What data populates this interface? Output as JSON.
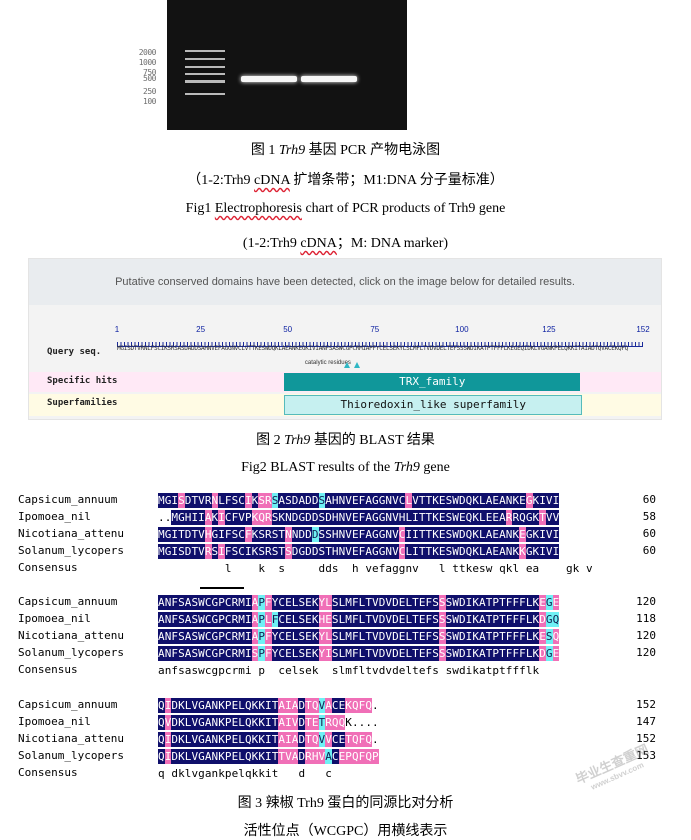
{
  "fig1": {
    "ladder_labels": [
      "2000",
      "1000",
      "750",
      "500",
      "250",
      "100"
    ],
    "caption_num": "图 1 ",
    "caption_gene": "Trh9",
    "caption_rest": " 基因 PCR 产物电泳图",
    "caption_sub_a": "（1-2:Trh9 ",
    "caption_sub_b": "cDNA",
    "caption_sub_c": " 扩增条带；M1:DNA 分子量标准）",
    "caption_en_a": "Fig1 ",
    "caption_en_b": "Electrophoresis",
    "caption_en_c": " chart of PCR products of Trh9 gene",
    "caption_en_sub_a": "(1-2:Trh9 ",
    "caption_en_sub_b": "cDNA",
    "caption_en_sub_c": "；M: DNA marker)"
  },
  "fig2": {
    "header": "Putative conserved domains have been detected, click on the image below for detailed results.",
    "ticks": [
      {
        "label": "1",
        "pos": 1
      },
      {
        "label": "25",
        "pos": 25
      },
      {
        "label": "50",
        "pos": 50
      },
      {
        "label": "75",
        "pos": 75
      },
      {
        "label": "100",
        "pos": 100
      },
      {
        "label": "125",
        "pos": 125
      },
      {
        "label": "152",
        "pos": 152
      }
    ],
    "query_label": "Query seq.",
    "query_seq": "MGISDTVRNLFSCIKSRSASDADDSAHNVEFAGGNVCLVTTKESWDQKLAEANKEGKIVIANFSASWCGPCRMIAPFYCELSEKYLSLMFLTVDVDELTEFSSSWDIKATPTFFFLKEGEQIDKLVGANKPELQKKITAIADTQVACEKQFQ",
    "catalytic_label": "catalytic residues",
    "specific_label": "Specific hits",
    "superfamilies_label": "Superfamilies",
    "domain_specific": "TRX_family",
    "domain_specific_range": [
      49,
      134
    ],
    "domain_super": "Thioredoxin_like superfamily",
    "domain_super_range": [
      49,
      134
    ],
    "catalytic_positions": [
      67,
      70
    ],
    "caption_num": "图 2 ",
    "caption_gene": "Trh9",
    "caption_rest": " 基因的 BLAST 结果",
    "caption_en_a": "Fig2 BLAST results of the ",
    "caption_en_gene": "Trh9",
    "caption_en_b": " gene"
  },
  "fig3": {
    "blocks": [
      {
        "rows": [
          {
            "name": "Capsicum_annuum",
            "seq": "MGISDTVRNLFSCIKSRSASDADDSAHNVEFAGGNVCLVTTKESWDQKLAEANKEGKIVI",
            "num": "60"
          },
          {
            "name": "Ipomoea_nil",
            "seq": "..MGHIIAKICFVPKQRSKNDGDDSDHNVEFAGGNVHLITTKESWEQKLEEARRQGKTVV",
            "num": "58"
          },
          {
            "name": "Nicotiana_attenu",
            "seq": "MGITDTVHGIFSCFKSRSTNNDDDSSHNVEFAGGNVCIITTKESWDQKLAEANKEGKIVI",
            "num": "60"
          },
          {
            "name": "Solanum_lycopers",
            "seq": "MGISDTVRSIFSCIKSRSTSDGDDSTHNVEFAGGNVCLITTKESWDQKLAEANKKGKIVI",
            "num": "60"
          }
        ],
        "consensus": "          l    k  s     dds  h vefaggnv   l ttkesw qkl ea    gk v",
        "color": [
          "nnnpnnnnpnnnnpnppcnnnnnncnnnnnnnnnnnnpnnnnnnnnnnnnnnnnnpnnnn",
          "wwnnnnnpnpnnnnpppnnnnnnnnnnnnnnnnnnnnnnnnnnnnnnnnnnnpnnnnpnn",
          "nnnnnnnpnnnnnpnnnnnpnnncnnnnnnnnnnnnpnnnnnnnnnnnnnnnnnpnnnnn",
          "nnnnnnnpnpnnnnnnnnnpnnnnnnnnnnnnnnnnpnnnnnnnnnnnnnnnnnpnnnnn"
        ]
      },
      {
        "rows": [
          {
            "name": "Capsicum_annuum",
            "seq": "ANFSASWCGPCRMIAPFYCELSEKYLSLMFLTVDVDELTEFSSSWDIKATPTFFFLKEGE",
            "num": "120"
          },
          {
            "name": "Ipomoea_nil",
            "seq": "ANFSASWCGPCRMIAPLFCELSEKHESLMFLTVDVDELTEFSSSWDIKATPTFFFLKDGQ",
            "num": "118"
          },
          {
            "name": "Nicotiana_attenu",
            "seq": "ANFSASWCGPCRMIAPFYCELSEKYLSLMFLTVDVDELTEFSSSWDIKATPTFFFLKESQ",
            "num": "120"
          },
          {
            "name": "Solanum_lycopers",
            "seq": "ANFSASWCGPCRMISPFYCELSEKYISLMFLTVDVDELTEFSSSWDIKATPTFFFLKDGE",
            "num": "120"
          }
        ],
        "consensus": "anfsaswcgpcrmi p  celsek  slmfltvdvdeltefs swdikatptffflk",
        "color": [
          "nnnnnnnnnnnnnnpcpnnnnnnnppnnnnnnnnnnnnnnnnpnnnnnnnnnnnnnnpcp",
          "nnnnnnnnnnnnnnpcpcnnnnnnppnnnnnnnnnnnnnnnnpnnnnnnnnnnnnnnpcc",
          "nnnnnnnnnnnnnnpcpnnnnnnnppnnnnnnnnnnnnnnnnpnnnnnnnnnnnnnnpcp",
          "nnnnnnnnnnnnnnpcpnnnnnnnppnnnnnnnnnnnnnnnnpnnnnnnnnnnnnnnpcp"
        ]
      },
      {
        "rows": [
          {
            "name": "Capsicum_annuum",
            "seq": "QIDKLVGANKPELQKKITAIADTQVACEKQFQ.",
            "num": "152"
          },
          {
            "name": "Ipomoea_nil",
            "seq": "QVDKLVGANKPELQKKITAIVDTETRQQK....",
            "num": "147"
          },
          {
            "name": "Nicotiana_attenu",
            "seq": "QIDKLVGANKPELQKKITAIADTQVVCETQFQ.",
            "num": "152"
          },
          {
            "name": "Solanum_lycopers",
            "seq": "QIDKLVGANKPELQKKITTVADRHVACEPQFQP",
            "num": "153"
          }
        ],
        "consensus": "q dklvgankpelqkkit   d   c",
        "color": [
          "npnnnnnnnnnnnnnnnnpppnppcpnnppppw",
          "npnnnnnnnnnnnnnnnnpppnppcpppwwwww",
          "npnnnnnnnnnnnnnnnnpppnppcpnnppppw",
          "npnnnnnnnnnnnnnnnnpppnpppcnpppppp"
        ]
      }
    ],
    "consensus_label": "Consensus",
    "caption": "图 3 辣椒 Trh9 蛋白的同源比对分析",
    "caption2": "活性位点（WCGPC）用横线表示"
  },
  "watermark": {
    "line1": "毕业生查重网",
    "line2": "www.sbvv.com"
  }
}
